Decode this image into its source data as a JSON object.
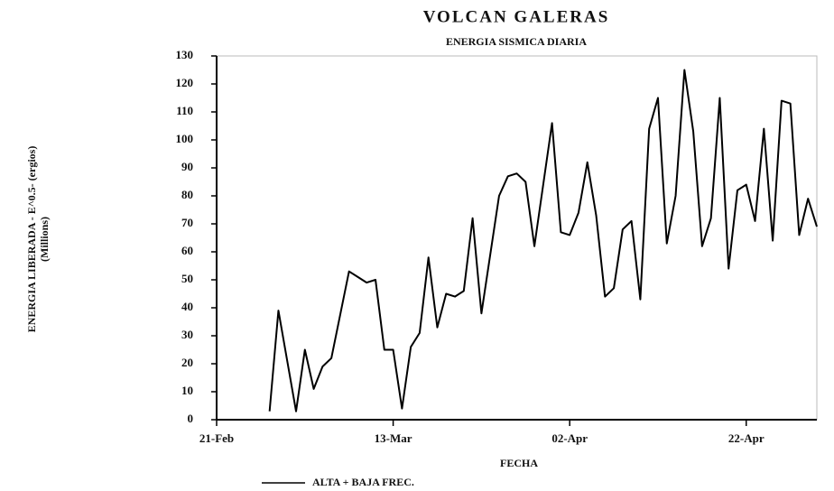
{
  "chart_data": {
    "type": "line",
    "title": "VOLCAN GALERAS",
    "subtitle": "ENERGIA SISMICA DIARIA",
    "xlabel": "FECHA",
    "ylabel": [
      "ENERGIA LIBERADA - E^0.5- (ergios)",
      "(Millions)"
    ],
    "x": [
      "02-27",
      "02-28",
      "03-02",
      "03-03",
      "03-04",
      "03-05",
      "03-06",
      "03-08",
      "03-09",
      "03-10",
      "03-11",
      "03-12",
      "03-13",
      "03-14",
      "03-15",
      "03-16",
      "03-17",
      "03-18",
      "03-19",
      "03-20",
      "03-21",
      "03-22",
      "03-23",
      "03-25",
      "03-26",
      "03-27",
      "03-28",
      "03-29",
      "03-31",
      "04-01",
      "04-02",
      "04-03",
      "04-04",
      "04-05",
      "04-06",
      "04-07",
      "04-08",
      "04-09",
      "04-10",
      "04-11",
      "04-12",
      "04-13",
      "04-14",
      "04-15",
      "04-16",
      "04-17",
      "04-18",
      "04-19",
      "04-20",
      "04-21",
      "04-22",
      "04-23",
      "04-24",
      "04-25",
      "04-26",
      "04-27",
      "04-28",
      "04-29",
      "04-30"
    ],
    "series": [
      {
        "name": "ALTA + BAJA FREC.",
        "color": "#000000",
        "values": [
          3,
          39,
          3,
          25,
          11,
          19,
          22,
          53,
          51,
          49,
          50,
          25,
          25,
          4,
          26,
          31,
          58,
          33,
          45,
          44,
          46,
          72,
          38,
          80,
          87,
          88,
          85,
          62,
          106,
          67,
          66,
          74,
          92,
          73,
          44,
          47,
          68,
          71,
          43,
          104,
          115,
          63,
          80,
          125,
          103,
          62,
          72,
          115,
          54,
          82,
          84,
          71,
          104,
          64,
          114,
          113,
          66,
          79,
          69
        ]
      }
    ],
    "xlim": [
      "02-21",
      "04-30"
    ],
    "xticks": [
      {
        "value": "02-21",
        "label": "21-Feb"
      },
      {
        "value": "03-13",
        "label": "13-Mar"
      },
      {
        "value": "04-02",
        "label": "02-Apr"
      },
      {
        "value": "04-22",
        "label": "22-Apr"
      }
    ],
    "ylim": [
      0,
      130
    ],
    "yticks": [
      0,
      10,
      20,
      30,
      40,
      50,
      60,
      70,
      80,
      90,
      100,
      110,
      120,
      130
    ]
  }
}
